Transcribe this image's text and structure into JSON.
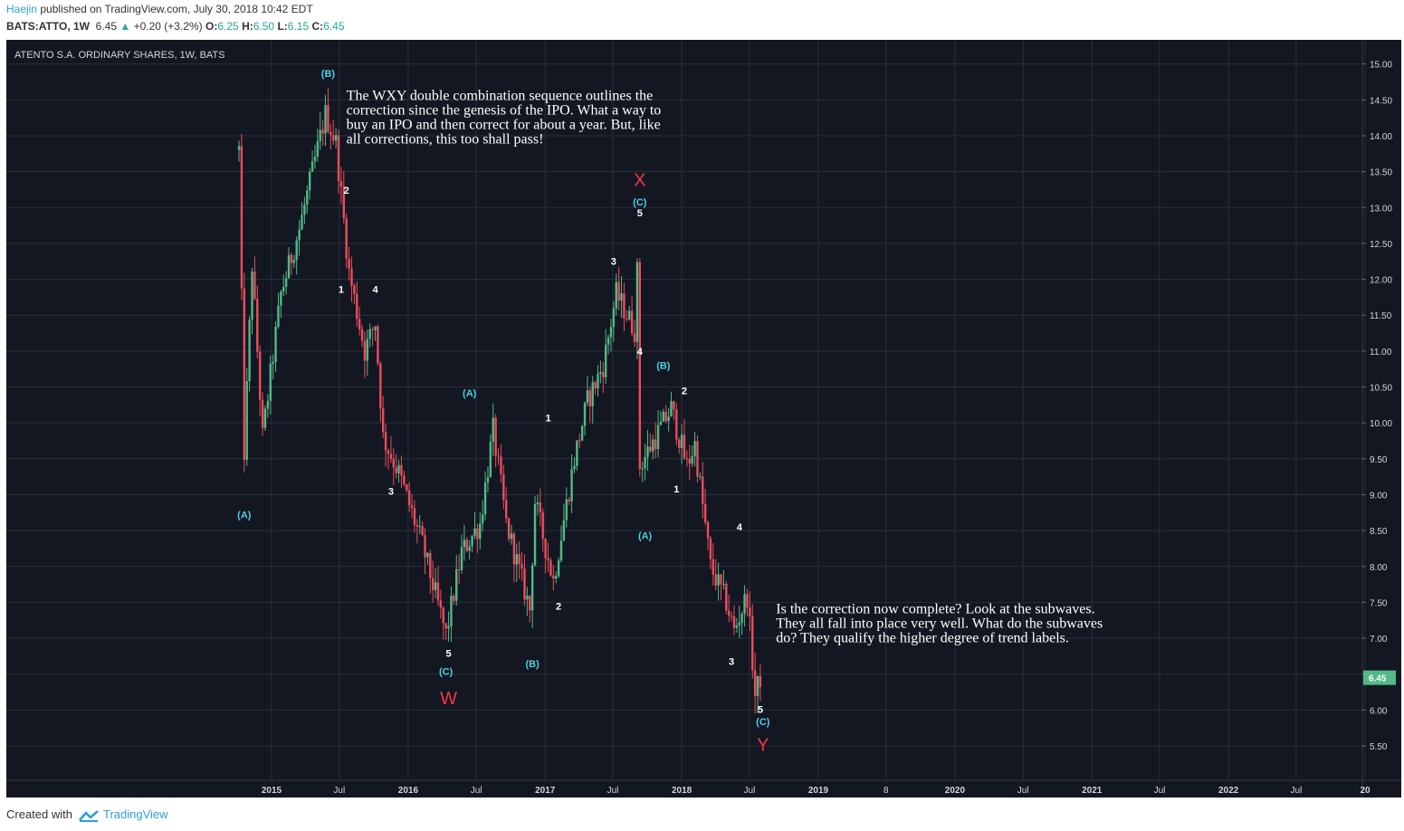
{
  "header": {
    "author": "Haejin",
    "published_text": "published on TradingView.com, July 30, 2018 10:42 EDT",
    "symbol": "BATS:ATTO, 1W",
    "last": "6.45",
    "change": "+0.20 (+3.2%)",
    "open_label": "O:",
    "open": "6.25",
    "high_label": "H:",
    "high": "6.50",
    "low_label": "L:",
    "low": "6.15",
    "close_label": "C:",
    "close": "6.45"
  },
  "footer": {
    "created_with": "Created with",
    "brand": "TradingView"
  },
  "colors": {
    "background": "#131722",
    "up": "#53b987",
    "down": "#eb4d5c",
    "cyan_label": "#4dd0e1",
    "white_label": "#ffffff",
    "red_label": "#f23645",
    "grid": "#2a2e39",
    "price_tag": "#53b987"
  },
  "chart_data": {
    "type": "candlestick",
    "title": "ATENTO S.A. ORDINARY SHARES, 1W, BATS",
    "timeframe": "1W",
    "ylim": [
      5.0,
      15.2
    ],
    "y_ticks": [
      "15.00",
      "14.50",
      "14.00",
      "13.50",
      "13.00",
      "12.50",
      "12.00",
      "11.50",
      "11.00",
      "10.50",
      "10.00",
      "9.50",
      "9.00",
      "8.50",
      "8.00",
      "7.50",
      "7.00",
      "6.50",
      "6.00",
      "5.50"
    ],
    "x_ticks": [
      "2015",
      "Jul",
      "2016",
      "Jul",
      "2017",
      "Jul",
      "2018",
      "Jul",
      "2019",
      "8",
      "2020",
      "Jul",
      "2021",
      "Jul",
      "2022",
      "Jul",
      "20"
    ],
    "last_price": "6.45",
    "path_points": [
      {
        "x": "2014-10-06",
        "y": 13.8
      },
      {
        "x": "2014-10-20",
        "y": 9.6
      },
      {
        "x": "2014-11-10",
        "y": 12.2
      },
      {
        "x": "2014-12-08",
        "y": 9.8
      },
      {
        "x": "2015-01-26",
        "y": 11.8
      },
      {
        "x": "2015-03-16",
        "y": 12.7
      },
      {
        "x": "2015-05-25",
        "y": 14.3
      },
      {
        "x": "2015-06-22",
        "y": 13.9
      },
      {
        "x": "2015-07-27",
        "y": 12.1
      },
      {
        "x": "2015-09-07",
        "y": 11.0
      },
      {
        "x": "2015-10-05",
        "y": 11.4
      },
      {
        "x": "2015-10-26",
        "y": 9.8
      },
      {
        "x": "2015-12-07",
        "y": 9.3
      },
      {
        "x": "2016-02-08",
        "y": 8.3
      },
      {
        "x": "2016-04-11",
        "y": 7.05
      },
      {
        "x": "2016-05-23",
        "y": 8.2
      },
      {
        "x": "2016-07-11",
        "y": 8.6
      },
      {
        "x": "2016-08-15",
        "y": 9.9
      },
      {
        "x": "2016-09-19",
        "y": 8.6
      },
      {
        "x": "2016-11-21",
        "y": 7.4
      },
      {
        "x": "2016-12-05",
        "y": 8.9
      },
      {
        "x": "2017-01-23",
        "y": 7.8
      },
      {
        "x": "2017-03-20",
        "y": 9.5
      },
      {
        "x": "2017-04-24",
        "y": 10.3
      },
      {
        "x": "2017-06-05",
        "y": 10.8
      },
      {
        "x": "2017-07-10",
        "y": 11.8
      },
      {
        "x": "2017-08-28",
        "y": 11.3
      },
      {
        "x": "2017-09-04",
        "y": 12.1
      },
      {
        "x": "2017-09-11",
        "y": 9.4
      },
      {
        "x": "2017-10-23",
        "y": 9.8
      },
      {
        "x": "2017-12-04",
        "y": 10.2
      },
      {
        "x": "2018-01-15",
        "y": 9.4
      },
      {
        "x": "2018-02-05",
        "y": 9.7
      },
      {
        "x": "2018-03-19",
        "y": 8.0
      },
      {
        "x": "2018-04-30",
        "y": 7.5
      },
      {
        "x": "2018-05-21",
        "y": 7.1
      },
      {
        "x": "2018-06-25",
        "y": 7.6
      },
      {
        "x": "2018-07-16",
        "y": 6.2
      },
      {
        "x": "2018-07-30",
        "y": 6.45
      }
    ],
    "annotations": [
      {
        "text": "(B)",
        "color": "cyan",
        "x": "2015-06-01",
        "y": 14.82
      },
      {
        "text": "2",
        "color": "white",
        "x": "2015-07-20",
        "y": 13.19
      },
      {
        "text": "1",
        "color": "white",
        "x": "2015-07-06",
        "y": 11.81
      },
      {
        "text": "4",
        "color": "white",
        "x": "2015-10-05",
        "y": 11.81
      },
      {
        "text": "3",
        "color": "white",
        "x": "2015-11-16",
        "y": 9.0
      },
      {
        "text": "(A)",
        "color": "cyan",
        "x": "2014-10-20",
        "y": 8.67
      },
      {
        "text": "(A)",
        "color": "cyan",
        "x": "2016-06-13",
        "y": 10.37
      },
      {
        "text": "5",
        "color": "white",
        "x": "2016-04-18",
        "y": 6.74
      },
      {
        "text": "(C)",
        "color": "cyan",
        "x": "2016-04-11",
        "y": 6.49
      },
      {
        "text": "W",
        "color": "red",
        "x": "2016-04-18",
        "y": 6.08
      },
      {
        "text": "(B)",
        "color": "cyan",
        "x": "2016-11-28",
        "y": 6.6
      },
      {
        "text": "1",
        "color": "white",
        "x": "2017-01-09",
        "y": 10.02
      },
      {
        "text": "2",
        "color": "white",
        "x": "2017-02-06",
        "y": 7.4
      },
      {
        "text": "3",
        "color": "white",
        "x": "2017-07-03",
        "y": 12.2
      },
      {
        "text": "X",
        "color": "red",
        "x": "2017-09-11",
        "y": 13.3
      },
      {
        "text": "(C)",
        "color": "cyan",
        "x": "2017-09-11",
        "y": 13.03
      },
      {
        "text": "5",
        "color": "white",
        "x": "2017-09-11",
        "y": 12.88
      },
      {
        "text": "4",
        "color": "white",
        "x": "2017-09-11",
        "y": 10.95
      },
      {
        "text": "(B)",
        "color": "cyan",
        "x": "2017-11-13",
        "y": 10.75
      },
      {
        "text": "2",
        "color": "white",
        "x": "2018-01-08",
        "y": 10.4
      },
      {
        "text": "(A)",
        "color": "cyan",
        "x": "2017-09-25",
        "y": 8.38
      },
      {
        "text": "1",
        "color": "white",
        "x": "2017-12-18",
        "y": 9.03
      },
      {
        "text": "4",
        "color": "white",
        "x": "2018-06-04",
        "y": 8.5
      },
      {
        "text": "3",
        "color": "white",
        "x": "2018-05-14",
        "y": 6.63
      },
      {
        "text": "5",
        "color": "white",
        "x": "2018-07-30",
        "y": 5.96
      },
      {
        "text": "(C)",
        "color": "cyan",
        "x": "2018-08-06",
        "y": 5.79
      },
      {
        "text": "Y",
        "color": "red",
        "x": "2018-08-06",
        "y": 5.43
      }
    ],
    "notes": [
      {
        "lines": [
          "The WXY double combination sequence outlines the",
          "correction since the genesis of the IPO. What a way to",
          "buy an IPO and then correct for about a year. But, like",
          "all corrections, this too shall pass!"
        ],
        "x": "2015-07-20",
        "y": 14.5
      },
      {
        "lines": [
          "Is the correction now complete? Look at the subwaves.",
          "They all fall into place very well. What do the subwaves",
          "do? They qualify the higher degree of trend labels."
        ],
        "x": "2018-09-10",
        "y": 7.35
      }
    ]
  }
}
